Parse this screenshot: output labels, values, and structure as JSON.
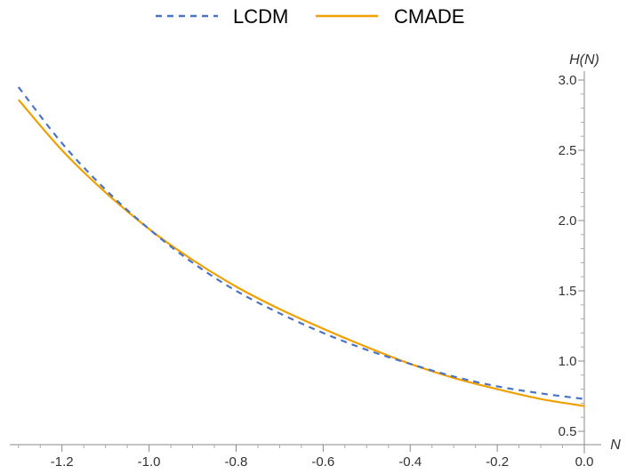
{
  "chart_data": {
    "type": "line",
    "title": "",
    "xlabel": "N",
    "ylabel": "H(N)",
    "xlim": [
      -1.32,
      0.0
    ],
    "ylim": [
      0.45,
      3.0
    ],
    "x_ticks": [
      -1.2,
      -1.0,
      -0.8,
      -0.6,
      -0.4,
      -0.2,
      0.0
    ],
    "x_tick_labels": [
      "-1.2",
      "-1.0",
      "-0.8",
      "-0.6",
      "-0.4",
      "-0.2",
      "0.0"
    ],
    "y_ticks": [
      0.5,
      1.0,
      1.5,
      2.0,
      2.5,
      3.0
    ],
    "y_tick_labels": [
      "0.5",
      "1.0",
      "1.5",
      "2.0",
      "2.5",
      "3.0"
    ],
    "grid": false,
    "legend_position": "top-center",
    "series": [
      {
        "name": "LCDM",
        "style": "dashed",
        "color": "#4a74c4",
        "x": [
          -1.3,
          -1.2,
          -1.1,
          -1.0,
          -0.9,
          -0.8,
          -0.7,
          -0.6,
          -0.5,
          -0.4,
          -0.3,
          -0.2,
          -0.1,
          0.0
        ],
        "y": [
          2.95,
          2.55,
          2.22,
          1.94,
          1.7,
          1.5,
          1.34,
          1.2,
          1.08,
          0.98,
          0.89,
          0.82,
          0.77,
          0.73
        ]
      },
      {
        "name": "CMADE",
        "style": "solid",
        "color": "#f0a000",
        "x": [
          -1.3,
          -1.2,
          -1.1,
          -1.0,
          -0.9,
          -0.8,
          -0.7,
          -0.6,
          -0.5,
          -0.4,
          -0.3,
          -0.2,
          -0.1,
          0.0
        ],
        "y": [
          2.86,
          2.5,
          2.2,
          1.94,
          1.72,
          1.53,
          1.37,
          1.23,
          1.1,
          0.98,
          0.88,
          0.8,
          0.73,
          0.68
        ]
      }
    ]
  }
}
